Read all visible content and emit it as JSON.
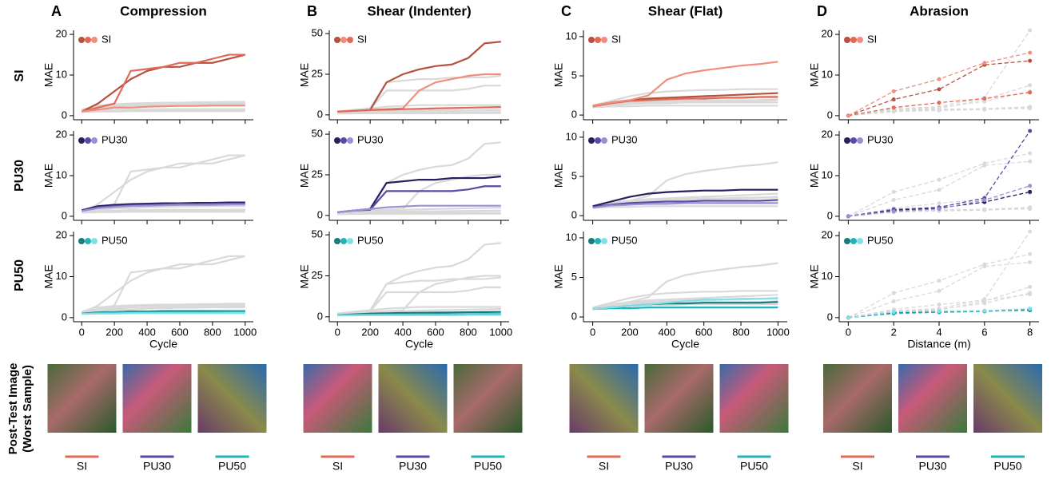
{
  "chart_data": [
    {
      "type": "line",
      "panel_label": "A",
      "title": "Compression",
      "xlabel": "Cycle",
      "ylabel": "MAE",
      "x": [
        0,
        100,
        200,
        300,
        400,
        500,
        600,
        700,
        800,
        900,
        1000
      ],
      "xlim": [
        -50,
        1050
      ],
      "xticks": [
        0,
        200,
        400,
        600,
        800,
        1000
      ],
      "ylim": [
        -1,
        21
      ],
      "yticks": [
        0,
        10,
        20
      ],
      "linestyle": "solid",
      "markers": false,
      "background_color": "#d9d9d9",
      "groups": [
        {
          "name": "SI",
          "series": [
            {
              "color": "#b5523f",
              "values": [
                1,
                3,
                6,
                9,
                11,
                12,
                12,
                13,
                13,
                14,
                15
              ]
            },
            {
              "color": "#e06a55",
              "values": [
                1,
                2,
                3,
                11,
                11.5,
                12,
                13,
                13,
                14,
                15,
                15
              ]
            },
            {
              "color": "#f08e7c",
              "values": [
                1,
                1.5,
                2,
                2,
                2.2,
                2.3,
                2.4,
                2.4,
                2.5,
                2.5,
                2.5
              ]
            }
          ]
        },
        {
          "name": "PU30",
          "series": [
            {
              "color": "#2a1e5c",
              "values": [
                1.5,
                2.5,
                2.8,
                3,
                3.1,
                3.2,
                3.2,
                3.3,
                3.3,
                3.4,
                3.4
              ]
            },
            {
              "color": "#5a4aa6",
              "values": [
                1.4,
                2.2,
                2.5,
                2.7,
                2.8,
                2.9,
                3,
                3,
                3.1,
                3.1,
                3.1
              ]
            },
            {
              "color": "#9b8fd6",
              "values": [
                1.3,
                2,
                2.3,
                2.5,
                2.6,
                2.7,
                2.8,
                2.8,
                2.8,
                2.9,
                2.9
              ]
            }
          ]
        },
        {
          "name": "PU50",
          "series": [
            {
              "color": "#1a7a7a",
              "values": [
                1,
                1.3,
                1.4,
                1.5,
                1.5,
                1.6,
                1.6,
                1.6,
                1.6,
                1.6,
                1.6
              ]
            },
            {
              "color": "#22b3b8",
              "values": [
                1,
                1.2,
                1.3,
                1.3,
                1.4,
                1.4,
                1.4,
                1.4,
                1.4,
                1.5,
                1.5
              ]
            },
            {
              "color": "#7fe0ea",
              "values": [
                0.9,
                1,
                1,
                1.1,
                1.1,
                1.1,
                1.1,
                1.1,
                1.1,
                1.1,
                1.1
              ]
            }
          ]
        }
      ]
    },
    {
      "type": "line",
      "panel_label": "B",
      "title": "Shear (Indenter)",
      "xlabel": "Cycle",
      "ylabel": "MAE",
      "x": [
        0,
        100,
        200,
        300,
        400,
        500,
        600,
        700,
        800,
        900,
        1000
      ],
      "xlim": [
        -50,
        1050
      ],
      "xticks": [
        0,
        200,
        400,
        600,
        800,
        1000
      ],
      "ylim": [
        -3,
        52
      ],
      "yticks": [
        0,
        25,
        50
      ],
      "linestyle": "solid",
      "markers": false,
      "background_color": "#d9d9d9",
      "groups": [
        {
          "name": "SI",
          "series": [
            {
              "color": "#b5523f",
              "values": [
                2,
                2.5,
                3,
                20,
                25,
                28,
                30,
                31,
                35,
                44,
                45
              ]
            },
            {
              "color": "#f08e7c",
              "values": [
                2,
                2.5,
                3,
                3.5,
                4,
                15,
                20,
                22,
                24,
                25,
                25
              ]
            },
            {
              "color": "#e06a55",
              "values": [
                2,
                2.5,
                3,
                3.2,
                3.5,
                3.7,
                4,
                4.2,
                4.4,
                4.6,
                4.8
              ]
            }
          ]
        },
        {
          "name": "PU30",
          "series": [
            {
              "color": "#2a1e5c",
              "values": [
                2,
                3,
                4,
                20,
                21,
                22,
                22,
                23,
                23,
                23,
                24
              ]
            },
            {
              "color": "#5a4aa6",
              "values": [
                2,
                3,
                3.5,
                15,
                15,
                15,
                15,
                15,
                16,
                18,
                18
              ]
            },
            {
              "color": "#9b8fd6",
              "values": [
                2,
                3,
                4,
                5,
                5.5,
                6,
                6,
                6,
                6,
                6,
                6
              ]
            }
          ]
        },
        {
          "name": "PU50",
          "series": [
            {
              "color": "#1a7a7a",
              "values": [
                1,
                1.5,
                2,
                2.2,
                2.4,
                2.5,
                2.6,
                2.7,
                2.8,
                2.9,
                3
              ]
            },
            {
              "color": "#22b3b8",
              "values": [
                1,
                1.2,
                1.3,
                1.4,
                1.5,
                1.5,
                1.6,
                1.6,
                1.6,
                1.7,
                1.7
              ]
            },
            {
              "color": "#7fe0ea",
              "values": [
                0.8,
                0.9,
                1,
                1,
                1,
                1,
                1,
                1,
                1.1,
                1.1,
                1.1
              ]
            }
          ]
        }
      ]
    },
    {
      "type": "line",
      "panel_label": "C",
      "title": "Shear (Flat)",
      "xlabel": "Cycle",
      "ylabel": "MAE",
      "x": [
        0,
        100,
        200,
        300,
        400,
        500,
        600,
        700,
        800,
        900,
        1000
      ],
      "xlim": [
        -50,
        1050
      ],
      "xticks": [
        0,
        200,
        400,
        600,
        800,
        1000
      ],
      "ylim": [
        -0.6,
        10.8
      ],
      "yticks": [
        0,
        5,
        10
      ],
      "linestyle": "solid",
      "markers": false,
      "background_color": "#d9d9d9",
      "groups": [
        {
          "name": "SI",
          "series": [
            {
              "color": "#b5523f",
              "values": [
                1.2,
                1.6,
                1.9,
                2.1,
                2.2,
                2.3,
                2.4,
                2.5,
                2.6,
                2.7,
                2.8
              ]
            },
            {
              "color": "#e06a55",
              "values": [
                1.1,
                1.5,
                1.8,
                1.9,
                2,
                2.1,
                2.1,
                2.2,
                2.2,
                2.3,
                2.3
              ]
            },
            {
              "color": "#f08e7c",
              "values": [
                1.2,
                1.6,
                1.9,
                2.5,
                4.5,
                5.3,
                5.7,
                6,
                6.3,
                6.5,
                6.8
              ]
            }
          ]
        },
        {
          "name": "PU30",
          "series": [
            {
              "color": "#2a1e5c",
              "values": [
                1.2,
                1.8,
                2.4,
                2.8,
                3,
                3.1,
                3.2,
                3.2,
                3.3,
                3.3,
                3.3
              ]
            },
            {
              "color": "#5a4aa6",
              "values": [
                1.1,
                1.4,
                1.6,
                1.7,
                1.8,
                1.8,
                1.9,
                1.9,
                1.9,
                1.9,
                2
              ]
            },
            {
              "color": "#9b8fd6",
              "values": [
                1,
                1.3,
                1.4,
                1.5,
                1.5,
                1.6,
                1.6,
                1.6,
                1.6,
                1.6,
                1.6
              ]
            }
          ]
        },
        {
          "name": "PU50",
          "series": [
            {
              "color": "#1a7a7a",
              "values": [
                1,
                1.2,
                1.4,
                1.6,
                1.7,
                1.7,
                1.8,
                1.8,
                1.8,
                1.8,
                1.9
              ]
            },
            {
              "color": "#22b3b8",
              "values": [
                1,
                1.1,
                1.1,
                1.2,
                1.2,
                1.2,
                1.2,
                1.2,
                1.2,
                1.2,
                1.2
              ]
            },
            {
              "color": "#7fe0ea",
              "values": [
                1,
                1.2,
                1.4,
                1.6,
                1.8,
                2,
                2.2,
                2.2,
                2.3,
                2.3,
                2.4
              ]
            }
          ]
        }
      ]
    },
    {
      "type": "line",
      "panel_label": "D",
      "title": "Abrasion",
      "xlabel": "Distance (m)",
      "ylabel": "MAE",
      "x": [
        0,
        2,
        4,
        6,
        8
      ],
      "xlim": [
        -0.4,
        8.4
      ],
      "xticks": [
        0,
        2,
        4,
        6,
        8
      ],
      "ylim": [
        -1,
        21
      ],
      "yticks": [
        0,
        10,
        20
      ],
      "linestyle": "dashed",
      "markers": true,
      "background_color": "#d9d9d9",
      "groups": [
        {
          "name": "SI",
          "series": [
            {
              "color": "#b5523f",
              "values": [
                0,
                4,
                6.5,
                12.5,
                13.5
              ]
            },
            {
              "color": "#e06a55",
              "values": [
                0,
                2,
                3.2,
                4.2,
                5.7
              ]
            },
            {
              "color": "#f08e7c",
              "values": [
                0,
                6,
                9,
                13,
                15.5
              ]
            }
          ]
        },
        {
          "name": "PU30",
          "series": [
            {
              "color": "#2a1e5c",
              "values": [
                0,
                1.5,
                2,
                3.5,
                6
              ]
            },
            {
              "color": "#5a4aa6",
              "values": [
                0,
                1.7,
                2.2,
                4.5,
                21
              ]
            },
            {
              "color": "#9b8fd6",
              "values": [
                0,
                1.2,
                1.8,
                4,
                7.5
              ]
            }
          ]
        },
        {
          "name": "PU50",
          "series": [
            {
              "color": "#1a7a7a",
              "values": [
                0,
                1.2,
                1.4,
                1.6,
                1.8
              ]
            },
            {
              "color": "#22b3b8",
              "values": [
                0,
                1,
                1.3,
                1.5,
                2
              ]
            },
            {
              "color": "#7fe0ea",
              "values": [
                0,
                1.4,
                1.6,
                1.7,
                2.2
              ]
            }
          ]
        }
      ]
    }
  ],
  "post_test": {
    "title_lines": [
      "Post-Test Image",
      "(Worst Sample)"
    ],
    "labels": [
      "SI",
      "PU30",
      "PU50"
    ]
  }
}
